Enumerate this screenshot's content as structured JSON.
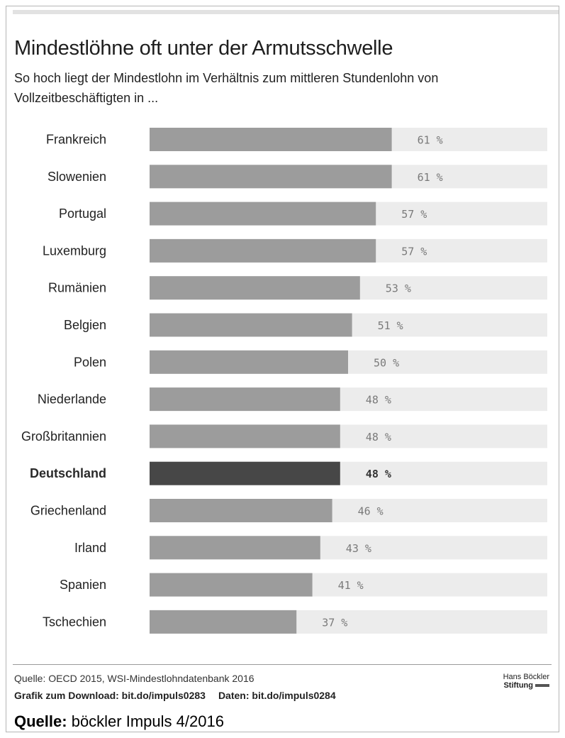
{
  "header": {
    "title": "Mindestlöhne oft unter der Armutsschwelle",
    "subtitle": "So hoch liegt der Mindestlohn im Verhältnis zum mittleren Stundenlohn von Vollzeitbeschäftigten in ..."
  },
  "chart_data": {
    "type": "bar",
    "orientation": "horizontal",
    "categories": [
      "Frankreich",
      "Slowenien",
      "Portugal",
      "Luxemburg",
      "Rumänien",
      "Belgien",
      "Polen",
      "Niederlande",
      "Großbritannien",
      "Deutschland",
      "Griechenland",
      "Irland",
      "Spanien",
      "Tschechien"
    ],
    "values": [
      61,
      61,
      57,
      57,
      53,
      51,
      50,
      48,
      48,
      48,
      46,
      43,
      41,
      37
    ],
    "value_labels": [
      "61 %",
      "61 %",
      "57 %",
      "57 %",
      "53 %",
      "51 %",
      "50 %",
      "48 %",
      "48 %",
      "48 %",
      "46 %",
      "43 %",
      "41 %",
      "37 %"
    ],
    "highlight": "Deutschland",
    "xlim": [
      0,
      100
    ],
    "colors": {
      "bar": "#9c9c9c",
      "highlight": "#474747",
      "track": "#ececec"
    }
  },
  "footer": {
    "source": "Quelle: OECD 2015, WSI-Mindestlohndatenbank 2016",
    "download": "Grafik zum Download: bit.do/impuls0283",
    "daten": "Daten: bit.do/impuls0284",
    "logo_line1": "Hans Böckler",
    "logo_line2": "Stiftung",
    "impuls_label": "Quelle:",
    "impuls_text": "böckler Impuls 4/2016"
  }
}
